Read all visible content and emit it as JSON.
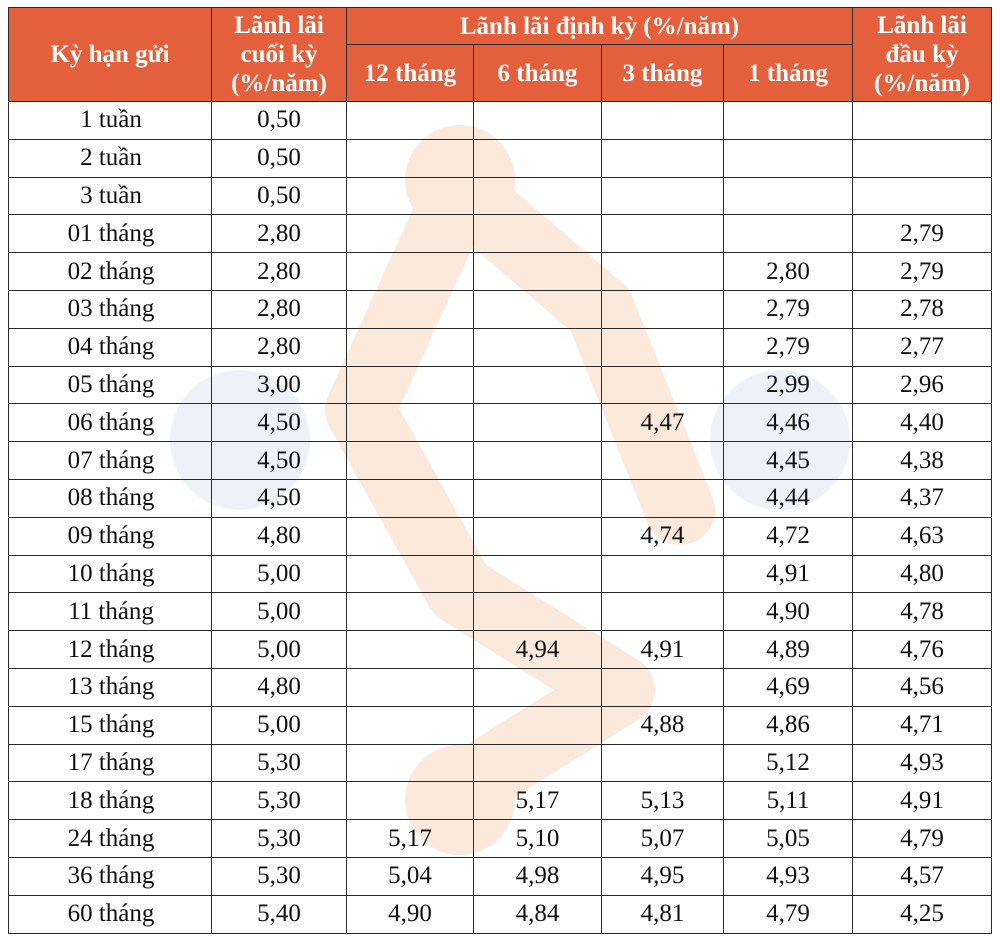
{
  "headers": {
    "term": "Kỳ hạn gửi",
    "end_line1": "Lãnh lãi",
    "end_line2": "cuối kỳ",
    "end_line3": "(%/năm)",
    "periodic": "Lãnh lãi định kỳ (%/năm)",
    "start_line1": "Lãnh lãi",
    "start_line2": "đầu kỳ",
    "start_line3": "(%/năm)",
    "periods": [
      "12 tháng",
      "6 tháng",
      "3 tháng",
      "1 tháng"
    ]
  },
  "rows": [
    {
      "term": "1 tuần",
      "end": "0,50",
      "p12": "",
      "p6": "",
      "p3": "",
      "p1": "",
      "start": ""
    },
    {
      "term": "2 tuần",
      "end": "0,50",
      "p12": "",
      "p6": "",
      "p3": "",
      "p1": "",
      "start": ""
    },
    {
      "term": "3 tuần",
      "end": "0,50",
      "p12": "",
      "p6": "",
      "p3": "",
      "p1": "",
      "start": ""
    },
    {
      "term": "01 tháng",
      "end": "2,80",
      "p12": "",
      "p6": "",
      "p3": "",
      "p1": "",
      "start": "2,79"
    },
    {
      "term": "02 tháng",
      "end": "2,80",
      "p12": "",
      "p6": "",
      "p3": "",
      "p1": "2,80",
      "start": "2,79"
    },
    {
      "term": "03 tháng",
      "end": "2,80",
      "p12": "",
      "p6": "",
      "p3": "",
      "p1": "2,79",
      "start": "2,78"
    },
    {
      "term": "04 tháng",
      "end": "2,80",
      "p12": "",
      "p6": "",
      "p3": "",
      "p1": "2,79",
      "start": "2,77"
    },
    {
      "term": "05 tháng",
      "end": "3,00",
      "p12": "",
      "p6": "",
      "p3": "",
      "p1": "2,99",
      "start": "2,96"
    },
    {
      "term": "06 tháng",
      "end": "4,50",
      "p12": "",
      "p6": "",
      "p3": "4,47",
      "p1": "4,46",
      "start": "4,40"
    },
    {
      "term": "07 tháng",
      "end": "4,50",
      "p12": "",
      "p6": "",
      "p3": "",
      "p1": "4,45",
      "start": "4,38"
    },
    {
      "term": "08 tháng",
      "end": "4,50",
      "p12": "",
      "p6": "",
      "p3": "",
      "p1": "4,44",
      "start": "4,37"
    },
    {
      "term": "09 tháng",
      "end": "4,80",
      "p12": "",
      "p6": "",
      "p3": "4,74",
      "p1": "4,72",
      "start": "4,63"
    },
    {
      "term": "10 tháng",
      "end": "5,00",
      "p12": "",
      "p6": "",
      "p3": "",
      "p1": "4,91",
      "start": "4,80"
    },
    {
      "term": "11 tháng",
      "end": "5,00",
      "p12": "",
      "p6": "",
      "p3": "",
      "p1": "4,90",
      "start": "4,78"
    },
    {
      "term": "12 tháng",
      "end": "5,00",
      "p12": "",
      "p6": "4,94",
      "p3": "4,91",
      "p1": "4,89",
      "start": "4,76"
    },
    {
      "term": "13 tháng",
      "end": "4,80",
      "p12": "",
      "p6": "",
      "p3": "",
      "p1": "4,69",
      "start": "4,56"
    },
    {
      "term": "15 tháng",
      "end": "5,00",
      "p12": "",
      "p6": "",
      "p3": "4,88",
      "p1": "4,86",
      "start": "4,71"
    },
    {
      "term": "17 tháng",
      "end": "5,30",
      "p12": "",
      "p6": "",
      "p3": "",
      "p1": "5,12",
      "start": "4,93"
    },
    {
      "term": "18 tháng",
      "end": "5,30",
      "p12": "",
      "p6": "5,17",
      "p3": "5,13",
      "p1": "5,11",
      "start": "4,91"
    },
    {
      "term": "24 tháng",
      "end": "5,30",
      "p12": "5,17",
      "p6": "5,10",
      "p3": "5,07",
      "p1": "5,05",
      "start": "4,79"
    },
    {
      "term": "36 tháng",
      "end": "5,30",
      "p12": "5,04",
      "p6": "4,98",
      "p3": "4,95",
      "p1": "4,93",
      "start": "4,57"
    },
    {
      "term": "60 tháng",
      "end": "5,40",
      "p12": "4,90",
      "p6": "4,84",
      "p3": "4,81",
      "p1": "4,79",
      "start": "4,25"
    }
  ],
  "colors": {
    "header_bg": "#e4603c",
    "header_text": "#ffffff",
    "watermark_orange": "#fbe9dc",
    "watermark_blue": "#eef1f8"
  }
}
